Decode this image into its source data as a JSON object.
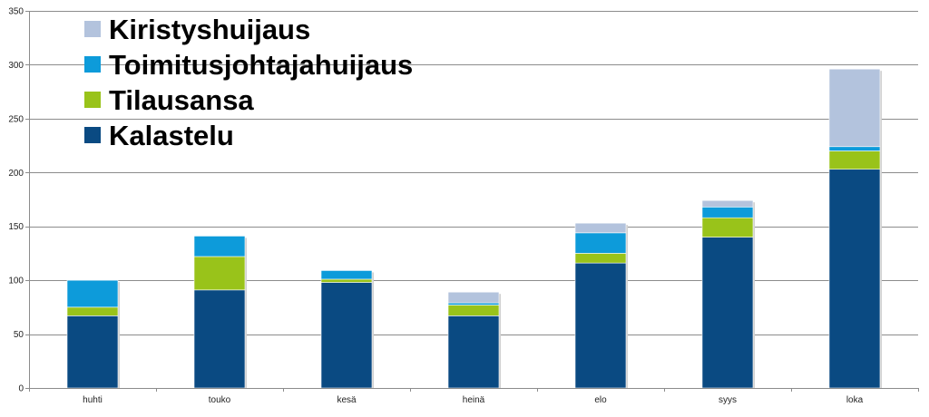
{
  "chart_data": {
    "type": "bar",
    "stacked": true,
    "title": "",
    "xlabel": "",
    "ylabel": "",
    "categories": [
      "huhti",
      "touko",
      "kesä",
      "heinä",
      "elo",
      "syys",
      "loka"
    ],
    "ylim": [
      0,
      350
    ],
    "yticks": [
      0,
      50,
      100,
      150,
      200,
      250,
      300,
      350
    ],
    "grid": true,
    "legend_position": "top-left",
    "series": [
      {
        "name": "Kalastelu",
        "color": "#0A4A82",
        "values": [
          67,
          91,
          98,
          67,
          116,
          140,
          203
        ]
      },
      {
        "name": "Tilausansa",
        "color": "#99C31A",
        "values": [
          8,
          31,
          3,
          10,
          9,
          18,
          17
        ]
      },
      {
        "name": "Toimitusjohtajahuijaus",
        "color": "#0D9BDA",
        "values": [
          25,
          19,
          8,
          2,
          19,
          10,
          4
        ]
      },
      {
        "name": "Kiristyshuijaus",
        "color": "#B3C3DD",
        "values": [
          0,
          0,
          0,
          10,
          9,
          6,
          72
        ]
      }
    ],
    "legend_order": [
      "Kiristyshuijaus",
      "Toimitusjohtajahuijaus",
      "Tilausansa",
      "Kalastelu"
    ]
  }
}
